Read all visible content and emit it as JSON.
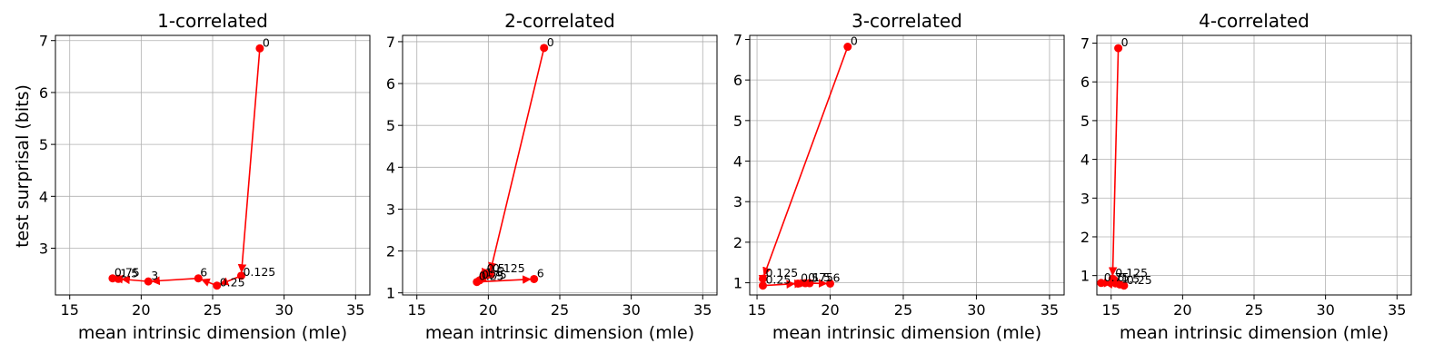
{
  "figure": {
    "ylabel": "test surprisal (bits)"
  },
  "chart_data": [
    {
      "type": "line",
      "title": "1-correlated",
      "xlabel": "mean intrinsic dimension (mle)",
      "ylabel": "test surprisal (bits)",
      "xlim": [
        14,
        36
      ],
      "ylim": [
        2.1,
        7.1
      ],
      "xticks": [
        15,
        20,
        25,
        30,
        35
      ],
      "yticks": [
        3,
        4,
        5,
        6,
        7
      ],
      "grid": true,
      "color": "#ff0000",
      "series": [
        {
          "points": [
            {
              "label": "0",
              "x": 28.3,
              "y": 6.85
            },
            {
              "label": "0.125",
              "x": 27.0,
              "y": 2.47
            },
            {
              "label": "0.25",
              "x": 25.3,
              "y": 2.28
            },
            {
              "label": "6",
              "x": 24.0,
              "y": 2.42
            },
            {
              "label": "3",
              "x": 20.5,
              "y": 2.36
            },
            {
              "label": "1.5",
              "x": 18.4,
              "y": 2.41
            },
            {
              "label": "0.75",
              "x": 18.0,
              "y": 2.42
            }
          ]
        }
      ]
    },
    {
      "type": "line",
      "title": "2-correlated",
      "xlabel": "mean intrinsic dimension (mle)",
      "ylabel": "",
      "xlim": [
        14,
        36
      ],
      "ylim": [
        0.95,
        7.15
      ],
      "xticks": [
        15,
        20,
        25,
        30,
        35
      ],
      "yticks": [
        1,
        2,
        3,
        4,
        5,
        6,
        7
      ],
      "grid": true,
      "color": "#ff0000",
      "series": [
        {
          "points": [
            {
              "label": "0",
              "x": 23.9,
              "y": 6.85
            },
            {
              "label": "0.125",
              "x": 20.1,
              "y": 1.45
            },
            {
              "label": "0.5",
              "x": 19.7,
              "y": 1.45
            },
            {
              "label": "1.5",
              "x": 19.6,
              "y": 1.35
            },
            {
              "label": "0.75",
              "x": 19.4,
              "y": 1.3
            },
            {
              "label": "0.25",
              "x": 19.2,
              "y": 1.26
            },
            {
              "label": "6",
              "x": 23.2,
              "y": 1.33
            }
          ]
        }
      ]
    },
    {
      "type": "line",
      "title": "3-correlated",
      "xlabel": "mean intrinsic dimension (mle)",
      "ylabel": "",
      "xlim": [
        14.5,
        36
      ],
      "ylim": [
        0.7,
        7.1
      ],
      "xticks": [
        15,
        20,
        25,
        30,
        35
      ],
      "yticks": [
        1,
        2,
        3,
        4,
        5,
        6,
        7
      ],
      "grid": true,
      "color": "#ff0000",
      "series": [
        {
          "points": [
            {
              "label": "0",
              "x": 21.2,
              "y": 6.82
            },
            {
              "label": "0.125",
              "x": 15.4,
              "y": 1.1
            },
            {
              "label": "0.25",
              "x": 15.4,
              "y": 0.93
            },
            {
              "label": "0.5",
              "x": 17.8,
              "y": 0.98
            },
            {
              "label": "0.75",
              "x": 18.3,
              "y": 0.99
            },
            {
              "label": "1.5",
              "x": 18.6,
              "y": 0.99
            },
            {
              "label": "6",
              "x": 20.0,
              "y": 0.98
            }
          ]
        }
      ]
    },
    {
      "type": "line",
      "title": "4-correlated",
      "xlabel": "mean intrinsic dimension (mle)",
      "ylabel": "",
      "xlim": [
        14,
        36
      ],
      "ylim": [
        0.5,
        7.2
      ],
      "xticks": [
        15,
        20,
        25,
        30,
        35
      ],
      "yticks": [
        1,
        2,
        3,
        4,
        5,
        6,
        7
      ],
      "grid": true,
      "color": "#ff0000",
      "series": [
        {
          "points": [
            {
              "label": "0",
              "x": 15.5,
              "y": 6.87
            },
            {
              "label": "0.125",
              "x": 15.1,
              "y": 0.92
            },
            {
              "label": "0.25",
              "x": 15.9,
              "y": 0.74
            },
            {
              "label": "0.75",
              "x": 14.3,
              "y": 0.81
            },
            {
              "label": "6",
              "x": 15.3,
              "y": 0.8
            },
            {
              "label": "1.5",
              "x": 15.6,
              "y": 0.77
            }
          ]
        }
      ]
    }
  ]
}
